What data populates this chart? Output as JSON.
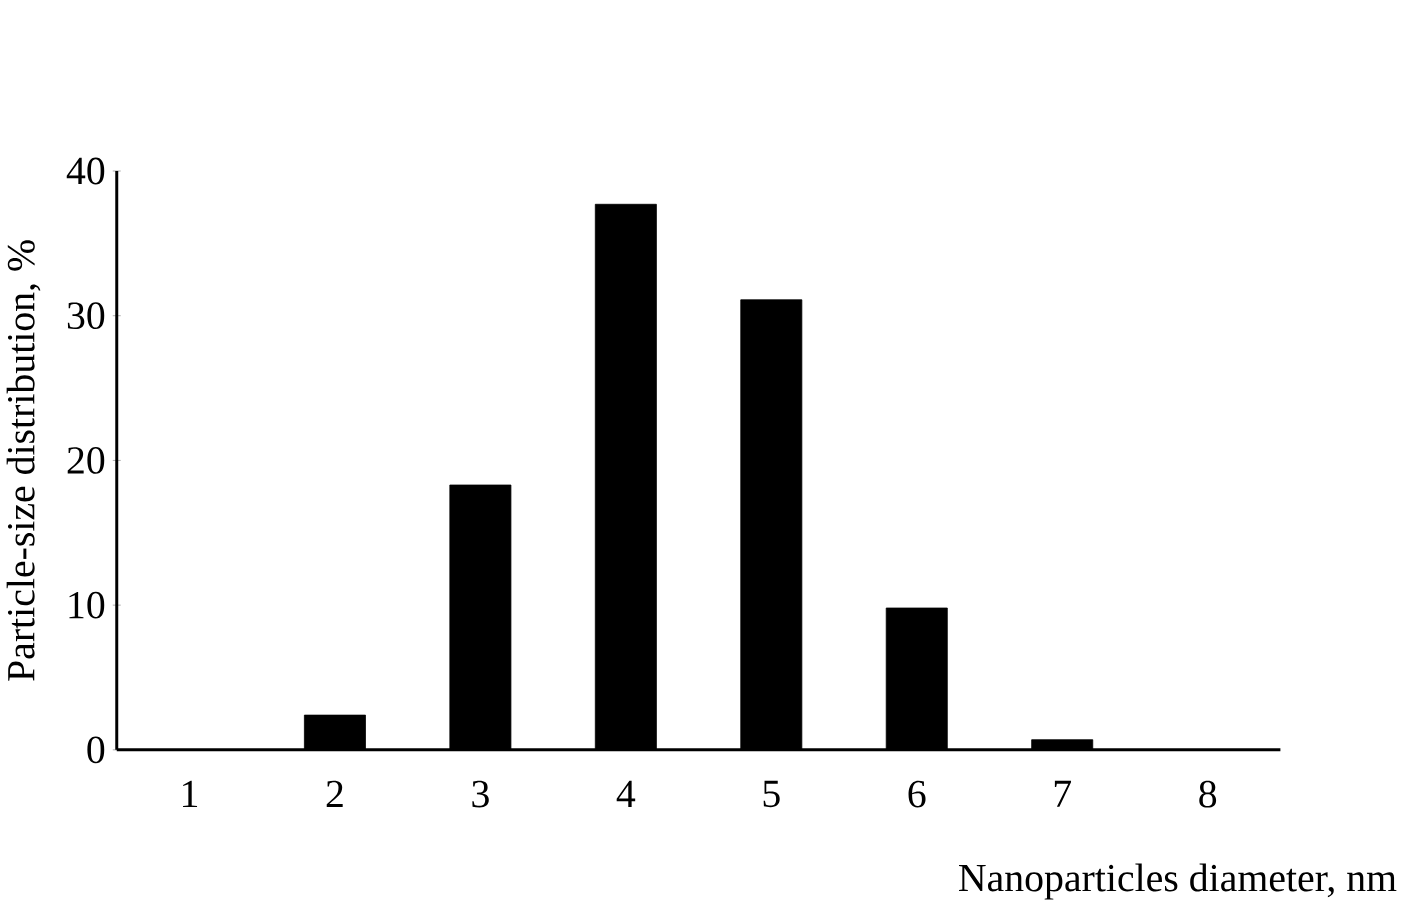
{
  "chart_data": {
    "type": "bar",
    "xlabel": "Nanoparticles diameter, nm",
    "ylabel": "Particle-size distribution, %",
    "categories": [
      "1",
      "2",
      "3",
      "4",
      "5",
      "6",
      "7",
      "8"
    ],
    "values": [
      0,
      2.4,
      18.3,
      37.7,
      31.1,
      9.8,
      0.7,
      0
    ],
    "color": "#000000",
    "ylim": [
      0,
      40
    ],
    "yticks": [
      0,
      10,
      20,
      30,
      40
    ],
    "grid": false,
    "legend": false
  }
}
